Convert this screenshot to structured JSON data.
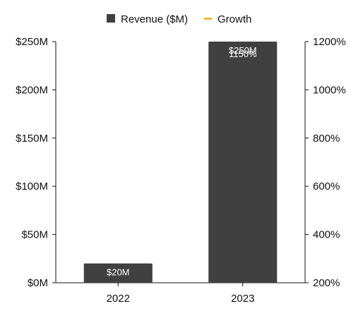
{
  "chart_data": {
    "type": "bar",
    "categories": [
      "2022",
      "2023"
    ],
    "series": [
      {
        "name": "Revenue ($M)",
        "kind": "bar",
        "values": [
          20,
          250
        ],
        "color": "#404040",
        "labels": [
          "$20M",
          "$250M"
        ]
      },
      {
        "name": "Growth",
        "kind": "line",
        "axis": "right",
        "values": [
          null,
          1150
        ],
        "color": "#f5b82e",
        "labels": [
          "",
          "1150%"
        ]
      }
    ],
    "y_left": {
      "lim": [
        0,
        250
      ],
      "ticks": [
        0,
        50,
        100,
        150,
        200,
        250
      ],
      "tick_labels": [
        "$0M",
        "$50M",
        "$100M",
        "$150M",
        "$200M",
        "$250M"
      ]
    },
    "y_right": {
      "lim": [
        200,
        1200
      ],
      "ticks": [
        200,
        400,
        600,
        800,
        1000,
        1200
      ],
      "tick_labels": [
        "200%",
        "400%",
        "600%",
        "800%",
        "1000%",
        "1200%"
      ]
    },
    "legend": {
      "position": "top-center"
    },
    "grid": false
  }
}
